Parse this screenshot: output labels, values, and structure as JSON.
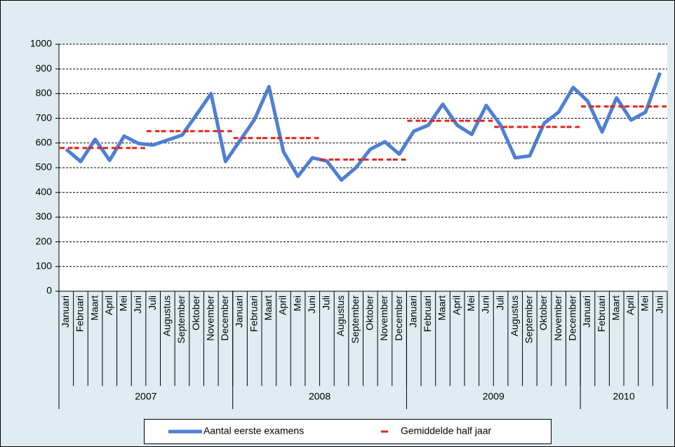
{
  "chart_data": {
    "type": "line",
    "categories": [
      "Januari",
      "Februari",
      "Maart",
      "April",
      "Mei",
      "Juni",
      "Juli",
      "Augustus",
      "September",
      "Oktober",
      "November",
      "December",
      "Januari",
      "Februari",
      "Maart",
      "April",
      "Mei",
      "Juni",
      "Juli",
      "Augustus",
      "September",
      "Oktober",
      "November",
      "December",
      "Januari",
      "Februari",
      "Maart",
      "April",
      "Mei",
      "Juni",
      "Juli",
      "Augustus",
      "September",
      "Oktober",
      "November",
      "December",
      "Januari",
      "Februari",
      "Maart",
      "April",
      "Mei",
      "Juni"
    ],
    "category_groups": [
      "2007",
      "2008",
      "2009",
      "2010"
    ],
    "series": [
      {
        "name": "Aantal eerste examens",
        "color": "#4f7fd3",
        "style": "line",
        "values": [
          575,
          525,
          615,
          530,
          628,
          598,
          592,
          612,
          632,
          715,
          800,
          525,
          610,
          695,
          828,
          565,
          465,
          540,
          527,
          450,
          500,
          575,
          605,
          555,
          648,
          672,
          757,
          672,
          635,
          752,
          672,
          540,
          548,
          680,
          725,
          825,
          770,
          645,
          783,
          693,
          725,
          885
        ]
      },
      {
        "name": "Gemiddelde half jaar",
        "color": "#e3231b",
        "style": "dash",
        "values": [
          580,
          580,
          580,
          580,
          580,
          580,
          648,
          648,
          648,
          648,
          648,
          648,
          620,
          620,
          620,
          620,
          620,
          620,
          533,
          533,
          533,
          533,
          533,
          533,
          690,
          690,
          690,
          690,
          690,
          690,
          665,
          665,
          665,
          665,
          665,
          665,
          748,
          748,
          748,
          748,
          748,
          748
        ]
      }
    ],
    "ylim": [
      0,
      1000
    ],
    "yticks": [
      0,
      100,
      200,
      300,
      400,
      500,
      600,
      700,
      800,
      900,
      1000
    ],
    "grid": true
  }
}
